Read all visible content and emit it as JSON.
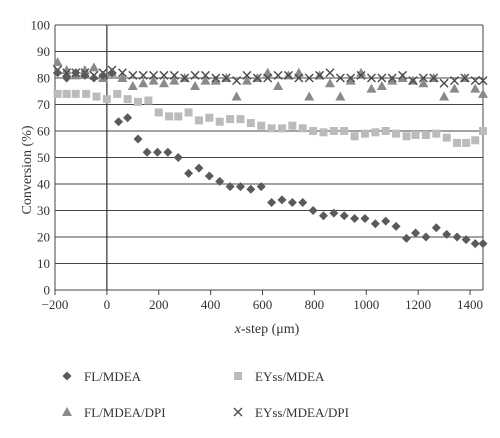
{
  "chart_data": {
    "type": "scatter",
    "xlabel_italic": "x",
    "xlabel_rest": "-step (μm)",
    "ylabel": "Conversion (%)",
    "xlim": [
      -200,
      1450
    ],
    "ylim": [
      0,
      100
    ],
    "x_ticks": [
      -200,
      0,
      200,
      400,
      600,
      800,
      1000,
      1200,
      1400
    ],
    "y_ticks": [
      0,
      10,
      20,
      30,
      40,
      50,
      60,
      70,
      80,
      90,
      100
    ],
    "grid": "horizontal",
    "legend_position": "bottom",
    "series": [
      {
        "name": "FL/MDEA",
        "marker": "diamond",
        "color": "#5a5a5a",
        "x": [
          -190,
          -155,
          -120,
          -85,
          -50,
          -15,
          20,
          45,
          80,
          120,
          155,
          195,
          235,
          275,
          315,
          355,
          395,
          435,
          475,
          515,
          555,
          595,
          635,
          675,
          715,
          755,
          795,
          835,
          875,
          915,
          955,
          995,
          1035,
          1075,
          1115,
          1155,
          1190,
          1230,
          1270,
          1310,
          1350,
          1385,
          1420,
          1450
        ],
        "y": [
          82,
          80,
          82,
          81,
          80,
          81,
          82,
          63.5,
          65,
          57,
          52,
          52,
          52,
          50,
          44,
          46,
          43,
          41,
          39,
          39,
          38,
          39,
          33,
          34,
          33,
          33,
          30,
          28,
          29,
          28,
          27,
          27,
          25,
          26,
          24,
          19.5,
          21.5,
          20,
          23.5,
          21,
          20,
          19,
          17.5,
          17.5
        ]
      },
      {
        "name": "EYss/MDEA",
        "marker": "square",
        "color": "#bbbbbb",
        "x": [
          -190,
          -155,
          -120,
          -80,
          -40,
          0,
          40,
          80,
          120,
          160,
          200,
          240,
          275,
          315,
          355,
          395,
          435,
          475,
          515,
          555,
          595,
          635,
          675,
          715,
          755,
          795,
          835,
          875,
          915,
          955,
          995,
          1035,
          1075,
          1115,
          1155,
          1190,
          1230,
          1270,
          1310,
          1350,
          1385,
          1420,
          1450
        ],
        "y": [
          74,
          74,
          74,
          74,
          73,
          72,
          74,
          72,
          71,
          71.5,
          67,
          65.5,
          65.5,
          67,
          64,
          65,
          63.5,
          64.5,
          64.5,
          63,
          62,
          61,
          61,
          62,
          61,
          60,
          59.5,
          60,
          60,
          58,
          59,
          59.5,
          60,
          59,
          58,
          58.5,
          58.5,
          59,
          57.5,
          55.5,
          55.5,
          56.5,
          60
        ]
      },
      {
        "name": "FL/MDEA/DPI",
        "marker": "triangle",
        "color": "#8a8a8a",
        "x": [
          -190,
          -155,
          -120,
          -85,
          -50,
          -15,
          20,
          60,
          100,
          140,
          180,
          220,
          260,
          300,
          340,
          380,
          420,
          460,
          500,
          540,
          580,
          620,
          660,
          700,
          740,
          780,
          820,
          860,
          900,
          940,
          980,
          1020,
          1060,
          1100,
          1140,
          1180,
          1220,
          1260,
          1300,
          1340,
          1380,
          1420,
          1450
        ],
        "y": [
          86,
          83,
          81,
          83,
          84,
          80,
          82,
          80,
          77,
          78,
          79,
          78,
          79,
          80,
          77,
          79,
          79,
          80,
          73,
          79,
          80,
          82,
          77,
          81,
          82,
          73,
          81,
          78,
          73,
          79,
          82,
          76,
          77,
          79,
          80,
          79,
          78,
          80,
          73,
          76,
          80,
          76,
          74
        ]
      },
      {
        "name": "EYss/MDEA/DPI",
        "marker": "cross",
        "color": "#4a4a4a",
        "x": [
          -190,
          -155,
          -120,
          -85,
          -50,
          -15,
          20,
          60,
          100,
          140,
          180,
          220,
          260,
          300,
          340,
          380,
          420,
          460,
          500,
          540,
          580,
          620,
          660,
          700,
          740,
          780,
          820,
          860,
          900,
          940,
          980,
          1020,
          1060,
          1100,
          1140,
          1180,
          1220,
          1260,
          1300,
          1340,
          1380,
          1420,
          1450
        ],
        "y": [
          83,
          82,
          82,
          82,
          81,
          82,
          83,
          82,
          81,
          81,
          81,
          81,
          81,
          80,
          81,
          81,
          80,
          80,
          79,
          81,
          80,
          80,
          81,
          81,
          80,
          80,
          81,
          82,
          80,
          80,
          81,
          80,
          80,
          80,
          81,
          79,
          80,
          80,
          78,
          79,
          80,
          79,
          79
        ]
      }
    ]
  }
}
